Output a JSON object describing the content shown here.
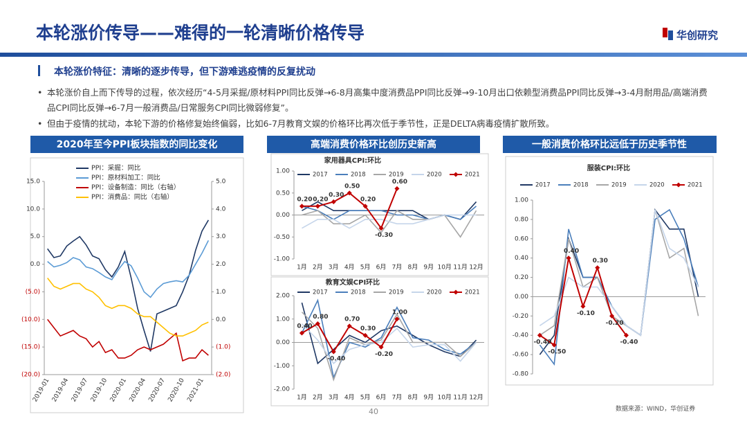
{
  "header": {
    "title": "本轮涨价传导——难得的一轮清晰价格传导",
    "logo": "华创研究"
  },
  "section_title": "本轮涨价特征：清晰的逐步传导，但下游难逃疫情的反复扰动",
  "bullets": [
    "本轮涨价自上而下传导的过程，依次经历“4-5月采掘/原材料PPI同比反弹→6-8月高集中度消费品PPI同比反弹→9-10月出口依赖型消费品PPI同比反弹→3-4月耐用品/高端消费品CPI同比反弹→6-7月一般消费品/日常服务CPI同比微弱修复”。",
    "但由于疫情的扰动，本轮下游的价格修复始终偏弱，比如6-7月教育文娱的价格环比再次低于季节性，正是DELTA病毒疫情扩散所致。"
  ],
  "panels": [
    "2020年至今PPI板块指数的同比变化",
    "高端消费价格环比创历史新高",
    "一般消费价格环比远低于历史季节性"
  ],
  "source": "数据来源：WIND，华创证券",
  "page_number": "40",
  "chart_data": [
    {
      "type": "line",
      "legend": "upper left",
      "categories": [
        "2019-01",
        null,
        null,
        "2019-04",
        null,
        null,
        "2019-07",
        null,
        null,
        "2019-10",
        null,
        null,
        "2020-01",
        null,
        null,
        "2020-04",
        null,
        null,
        "2020-07",
        null,
        null,
        "2020-10",
        null,
        null,
        "2021-01",
        null
      ],
      "ylim": [
        -20,
        15
      ],
      "yticks": [
        {
          "value": -20,
          "label": "(20.0)"
        },
        {
          "value": -15,
          "label": "(15.0)"
        },
        {
          "value": -10,
          "label": "(10.0)"
        },
        {
          "value": -5,
          "label": "(5.0)"
        },
        {
          "value": 0,
          "label": "0.0"
        },
        {
          "value": 5,
          "label": "5.0"
        },
        {
          "value": 10,
          "label": "10.0"
        },
        {
          "value": 15,
          "label": "15.0"
        }
      ],
      "y2lim": [
        -2,
        5
      ],
      "y2ticks": [
        {
          "value": -2,
          "label": "(2.0)"
        },
        {
          "value": -1,
          "label": "(1.0)"
        },
        {
          "value": 0,
          "label": "0.0"
        },
        {
          "value": 1,
          "label": "1.0"
        },
        {
          "value": 2,
          "label": "2.0"
        },
        {
          "value": 3,
          "label": "3.0"
        },
        {
          "value": 4,
          "label": "4.0"
        },
        {
          "value": 5,
          "label": "5.0"
        }
      ],
      "series": [
        {
          "name": "PPI：采掘：同比",
          "color": "#1f3864",
          "values": [
            2.8,
            1.2,
            1.5,
            3.3,
            4.2,
            5.0,
            3.5,
            1.5,
            1.0,
            -1.0,
            -2.3,
            -0.5,
            2.3,
            -2.5,
            -8.0,
            -12.0,
            -15.8,
            -9.0,
            -8.5,
            -8.0,
            -7.5,
            -5.0,
            -2.0,
            2.5,
            6.0,
            8.0
          ]
        },
        {
          "name": "PPI：原材料加工：同比",
          "color": "#5b9bd5",
          "values": [
            0.5,
            -0.5,
            -0.2,
            0.3,
            1.2,
            0.8,
            -0.5,
            -0.8,
            -1.5,
            -2.3,
            -2.8,
            -1.0,
            0.5,
            -0.3,
            -2.5,
            -5.0,
            -6.0,
            -4.5,
            -3.5,
            -3.2,
            -3.0,
            -3.2,
            -2.0,
            0.0,
            2.0,
            4.3
          ]
        },
        {
          "name": "PPI：设备制造：同比（右轴）",
          "color": "#c00000",
          "axis": "y2",
          "values": [
            0.0,
            -0.3,
            -0.6,
            -0.5,
            -0.4,
            -0.6,
            -0.7,
            -1.0,
            -0.8,
            -1.2,
            -1.1,
            -1.4,
            -1.4,
            -1.3,
            -1.1,
            -1.0,
            -1.1,
            -1.0,
            -0.9,
            -0.7,
            -0.5,
            -1.5,
            -1.4,
            -1.4,
            -1.1,
            -1.3
          ]
        },
        {
          "name": "PPI：消费品：同比（右轴）",
          "color": "#ffc000",
          "axis": "y2",
          "values": [
            1.5,
            1.2,
            1.1,
            1.2,
            1.3,
            1.3,
            1.1,
            1.0,
            0.8,
            0.5,
            0.4,
            0.5,
            0.5,
            0.4,
            0.2,
            0.1,
            0.1,
            -0.1,
            -0.3,
            -0.5,
            -0.6,
            -0.6,
            -0.5,
            -0.4,
            -0.2,
            -0.1
          ]
        }
      ]
    },
    {
      "type": "line",
      "title": "家用器具CPI:环比",
      "legend": "top",
      "categories": [
        "1月",
        "2月",
        "3月",
        "4月",
        "5月",
        "6月",
        "7月",
        "8月",
        "9月",
        "10月",
        "11月",
        "12月"
      ],
      "ylim": [
        -1,
        1
      ],
      "yticks": [
        {
          "value": -1,
          "label": "-1.00"
        },
        {
          "value": -0.5,
          "label": "-0.50"
        },
        {
          "value": 0,
          "label": "0.00"
        },
        {
          "value": 0.5,
          "label": "0.50"
        },
        {
          "value": 1,
          "label": "1.00"
        }
      ],
      "series": [
        {
          "name": "2017",
          "color": "#1f3864",
          "values": [
            0.1,
            0.3,
            0.1,
            0.1,
            0.1,
            0.1,
            0.1,
            0.1,
            -0.1,
            0,
            -0.1,
            0.3
          ]
        },
        {
          "name": "2018",
          "color": "#4a7ebb",
          "values": [
            0.2,
            0.1,
            -0.1,
            0.1,
            0.1,
            0.1,
            0,
            0,
            -0.1,
            0,
            -0.1,
            0.2
          ]
        },
        {
          "name": "2019",
          "color": "#a6a6a6",
          "values": [
            0,
            0.1,
            -0.2,
            -0.2,
            0,
            -0.4,
            0.1,
            -0.1,
            -0.1,
            0,
            -0.5,
            0.1
          ]
        },
        {
          "name": "2020",
          "color": "#c5d5ea",
          "values": [
            -0.3,
            -0.1,
            -0.1,
            -0.3,
            -0.1,
            -0.1,
            -0.2,
            -0.2,
            -0.1,
            0,
            0,
            0
          ]
        },
        {
          "name": "2021",
          "color": "#c00000",
          "marker": "diamond",
          "values": [
            0.2,
            0.2,
            0.3,
            0.5,
            0.2,
            -0.3,
            0.6,
            null,
            null,
            null,
            null,
            null
          ],
          "value_labels": [
            "0.20",
            "0.20",
            "0.30",
            "0.50",
            "0.20",
            "-0.30",
            "0.60",
            null,
            null,
            null,
            null,
            null
          ]
        }
      ]
    },
    {
      "type": "line",
      "title": "教育文娱CPI环比",
      "legend": "top",
      "categories": [
        "1月",
        "2月",
        "3月",
        "4月",
        "5月",
        "6月",
        "7月",
        "8月",
        "9月",
        "10月",
        "11月",
        "12月"
      ],
      "ylim": [
        -2,
        2
      ],
      "yticks": [
        {
          "value": -2,
          "label": "-2.00"
        },
        {
          "value": -1,
          "label": "-1.00"
        },
        {
          "value": 0,
          "label": "0.00"
        },
        {
          "value": 1,
          "label": "1.00"
        },
        {
          "value": 2,
          "label": "2.00"
        }
      ],
      "series": [
        {
          "name": "2017",
          "color": "#1f3864",
          "values": [
            1.7,
            -0.9,
            -0.3,
            0.3,
            0,
            0.5,
            0.7,
            0.3,
            -0.1,
            -0.4,
            -0.6,
            0.1
          ]
        },
        {
          "name": "2018",
          "color": "#4a7ebb",
          "values": [
            0.4,
            1.8,
            -1.5,
            0,
            -0.2,
            0.2,
            1.5,
            0.2,
            0.1,
            -0.3,
            -0.5,
            0
          ]
        },
        {
          "name": "2019",
          "color": "#a6a6a6",
          "values": [
            1.3,
            0.6,
            -1.6,
            0.2,
            -0.1,
            0.1,
            1.2,
            0,
            0,
            0,
            -0.6,
            0
          ]
        },
        {
          "name": "2020",
          "color": "#c5d5ea",
          "values": [
            0.8,
            0.1,
            -0.9,
            -0.3,
            -0.1,
            0,
            0.6,
            -0.2,
            -0.1,
            -0.1,
            -0.8,
            0
          ]
        },
        {
          "name": "2021",
          "color": "#c00000",
          "marker": "diamond",
          "values": [
            0.4,
            0.8,
            -0.4,
            0.7,
            0.3,
            -0.2,
            1.0,
            null,
            null,
            null,
            null,
            null
          ],
          "value_labels": [
            "0.40",
            "0.80",
            "-0.40",
            "0.70",
            "0.30",
            "-0.20",
            "1.00",
            null,
            null,
            null,
            null,
            null
          ]
        }
      ]
    },
    {
      "type": "line",
      "title": "服装CPI:环比",
      "legend": "top",
      "categories": [
        null,
        null,
        null,
        null,
        null,
        null,
        null,
        null,
        null,
        null,
        null,
        null
      ],
      "ylim": [
        -0.8,
        1
      ],
      "yticks": [
        {
          "value": -0.8,
          "label": "-0.80"
        },
        {
          "value": -0.6,
          "label": "-0.60"
        },
        {
          "value": -0.4,
          "label": "-0.40"
        },
        {
          "value": -0.2,
          "label": "-0.20"
        },
        {
          "value": 0,
          "label": "0.00"
        },
        {
          "value": 0.2,
          "label": "0.20"
        },
        {
          "value": 0.4,
          "label": "0.40"
        },
        {
          "value": 0.6,
          "label": "0.60"
        },
        {
          "value": 0.8,
          "label": "0.80"
        },
        {
          "value": 1,
          "label": "1.00"
        }
      ],
      "series": [
        {
          "name": "2017",
          "color": "#1f3864",
          "values": [
            -0.6,
            -0.4,
            0.6,
            0.2,
            0.2,
            -0.1,
            -0.3,
            -0.4,
            0.9,
            0.7,
            0.7,
            0.0
          ]
        },
        {
          "name": "2018",
          "color": "#4a7ebb",
          "values": [
            -0.5,
            -0.7,
            0.7,
            0.2,
            0.2,
            -0.1,
            -0.3,
            -0.4,
            0.8,
            0.9,
            0.6,
            0.1
          ]
        },
        {
          "name": "2019",
          "color": "#a6a6a6",
          "values": [
            -0.4,
            -0.3,
            0.6,
            0.1,
            0.2,
            -0.2,
            -0.3,
            -0.4,
            0.9,
            0.4,
            0.5,
            -0.2
          ]
        },
        {
          "name": "2020",
          "color": "#c5d5ea",
          "values": [
            -0.3,
            -0.2,
            0.2,
            0.1,
            0.1,
            -0.1,
            -0.3,
            -0.4,
            0.9,
            0.5,
            0.4,
            0.1
          ]
        },
        {
          "name": "2021",
          "color": "#c00000",
          "marker": "diamond",
          "values": [
            -0.4,
            -0.5,
            0.4,
            -0.1,
            0.3,
            -0.2,
            -0.4,
            null,
            null,
            null,
            null,
            null
          ],
          "value_labels": [
            "-0.40",
            "-0.50",
            "0.40",
            "-0.10",
            "0.30",
            "-0.20",
            "-0.40",
            null,
            null,
            null,
            null,
            null
          ]
        }
      ]
    }
  ]
}
